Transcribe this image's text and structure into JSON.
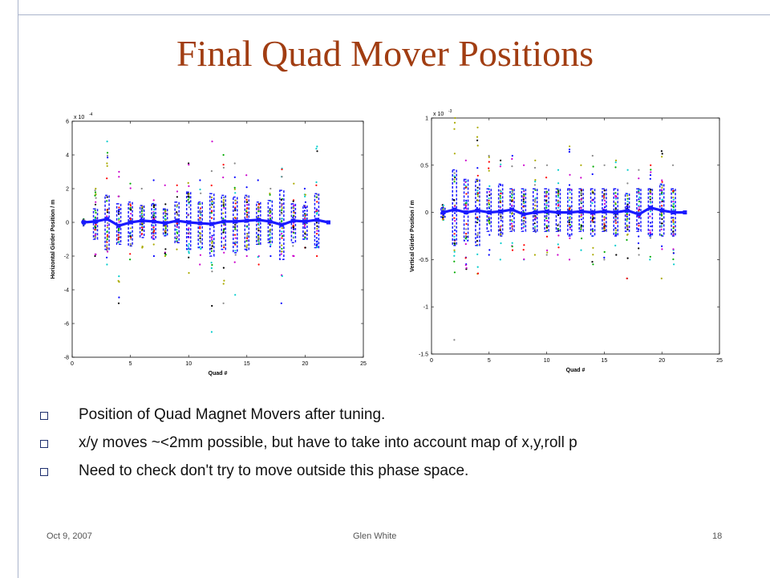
{
  "slide": {
    "title": "Final Quad Mover Positions",
    "bullets": [
      "Position of Quad Magnet Movers after tuning.",
      "x/y moves ~<2mm possible, but have to take into account map of x,y,roll p",
      "Need to check don't try to move outside this phase space."
    ],
    "footer": {
      "date": "Oct 9, 2007",
      "author": "Glen White",
      "page": "18"
    }
  },
  "colors": {
    "title": "#a13d12",
    "series": "#1a1aff",
    "scatter": [
      "#ff0000",
      "#00aa00",
      "#0000ff",
      "#00cccc",
      "#cc00cc",
      "#aaaa00",
      "#000000",
      "#888888"
    ]
  },
  "chart_data": [
    {
      "type": "scatter",
      "ylabel": "Horizontal Girder Position / m",
      "xlabel": "Quad #",
      "exponent_label": "x 10",
      "exponent_power": "-4",
      "xlim": [
        0,
        25
      ],
      "ylim": [
        -8,
        6
      ],
      "xticks": [
        0,
        5,
        10,
        15,
        20,
        25
      ],
      "yticks": [
        -8,
        -6,
        -4,
        -2,
        0,
        2,
        4,
        6
      ],
      "grid": false,
      "series": [
        {
          "style": "thick-line-with-markers",
          "x": [
            1,
            2,
            3,
            4,
            5,
            6,
            7,
            8,
            9,
            10,
            11,
            12,
            13,
            14,
            15,
            16,
            17,
            18,
            19,
            20,
            21,
            22
          ],
          "y": [
            0.0,
            0.05,
            0.2,
            -0.2,
            0.0,
            0.1,
            0.05,
            -0.05,
            0.1,
            0.0,
            -0.05,
            -0.1,
            0.05,
            0.05,
            0.1,
            0.15,
            0.05,
            -0.15,
            0.1,
            0.05,
            0.15,
            0.0
          ]
        }
      ],
      "spread": {
        "x": [
          1,
          2,
          3,
          4,
          5,
          6,
          7,
          8,
          9,
          10,
          11,
          12,
          13,
          14,
          15,
          16,
          17,
          18,
          19,
          20,
          21
        ],
        "min": [
          -0.2,
          -2.0,
          -2.5,
          -4.8,
          -2.2,
          -1.5,
          -2.0,
          -2.0,
          -1.6,
          -3.0,
          -2.5,
          -6.5,
          -4.8,
          -4.3,
          -2.0,
          -2.5,
          -2.0,
          -4.8,
          -2.0,
          -1.5,
          -2.0
        ],
        "max": [
          0.2,
          2.0,
          4.8,
          3.0,
          2.3,
          2.0,
          2.5,
          2.2,
          2.2,
          3.5,
          2.5,
          4.8,
          4.0,
          3.5,
          2.8,
          2.5,
          2.0,
          3.2,
          2.3,
          2.0,
          4.5
        ],
        "box_min": [
          -0.1,
          -1.0,
          -1.6,
          -1.3,
          -1.4,
          -0.9,
          -1.0,
          -0.8,
          -1.2,
          -1.6,
          -1.5,
          -2.0,
          -1.6,
          -1.8,
          -1.6,
          -1.3,
          -1.2,
          -2.2,
          -1.2,
          -1.0,
          -1.5
        ],
        "box_max": [
          0.1,
          0.8,
          1.6,
          1.1,
          1.2,
          1.0,
          1.1,
          0.8,
          1.2,
          1.8,
          1.2,
          1.7,
          1.6,
          1.5,
          1.6,
          1.2,
          1.3,
          1.9,
          1.1,
          1.0,
          1.7
        ]
      }
    },
    {
      "type": "scatter",
      "ylabel": "Vertical Girder Position / m",
      "xlabel": "Quad #",
      "exponent_label": "x 10",
      "exponent_power": "-3",
      "xlim": [
        0,
        25
      ],
      "ylim": [
        -1.5,
        1
      ],
      "xticks": [
        0,
        5,
        10,
        15,
        20,
        25
      ],
      "yticks": [
        -1.5,
        -1,
        -0.5,
        0,
        0.5,
        1
      ],
      "ytick_labels": [
        "-1.5",
        "-1",
        "-0.5",
        "0",
        "0.5",
        "1"
      ],
      "grid": false,
      "series": [
        {
          "style": "thick-line-with-markers",
          "x": [
            1,
            2,
            3,
            4,
            5,
            6,
            7,
            8,
            9,
            10,
            11,
            12,
            13,
            14,
            15,
            16,
            17,
            18,
            19,
            20,
            21,
            22
          ],
          "y": [
            0.0,
            0.03,
            0.0,
            0.02,
            0.0,
            0.01,
            0.03,
            -0.02,
            0.0,
            0.01,
            0.0,
            0.0,
            0.01,
            0.0,
            0.01,
            0.0,
            0.02,
            -0.02,
            0.05,
            0.02,
            0.0,
            0.0
          ]
        }
      ],
      "spread": {
        "x": [
          1,
          2,
          3,
          4,
          5,
          6,
          7,
          8,
          9,
          10,
          11,
          12,
          13,
          14,
          15,
          16,
          17,
          18,
          19,
          20,
          21
        ],
        "min": [
          -0.08,
          -1.35,
          -0.6,
          -0.65,
          -0.45,
          -0.5,
          -0.4,
          -0.5,
          -0.45,
          -0.45,
          -0.45,
          -0.5,
          -0.4,
          -0.55,
          -0.5,
          -0.45,
          -0.7,
          -0.45,
          -0.5,
          -0.7,
          -0.55
        ],
        "max": [
          0.08,
          1.0,
          0.55,
          0.9,
          0.6,
          0.55,
          0.6,
          0.5,
          0.55,
          0.5,
          0.45,
          0.7,
          0.5,
          0.6,
          0.5,
          0.55,
          0.45,
          0.45,
          0.5,
          0.65,
          0.5
        ],
        "box_min": [
          -0.05,
          -0.35,
          -0.3,
          -0.35,
          -0.2,
          -0.25,
          -0.2,
          -0.2,
          -0.2,
          -0.2,
          -0.2,
          -0.25,
          -0.2,
          -0.25,
          -0.2,
          -0.25,
          -0.2,
          -0.2,
          -0.25,
          -0.25,
          -0.25
        ],
        "box_max": [
          0.05,
          0.45,
          0.35,
          0.35,
          0.25,
          0.3,
          0.25,
          0.25,
          0.25,
          0.25,
          0.25,
          0.25,
          0.25,
          0.25,
          0.25,
          0.25,
          0.2,
          0.25,
          0.25,
          0.3,
          0.25
        ]
      }
    }
  ]
}
